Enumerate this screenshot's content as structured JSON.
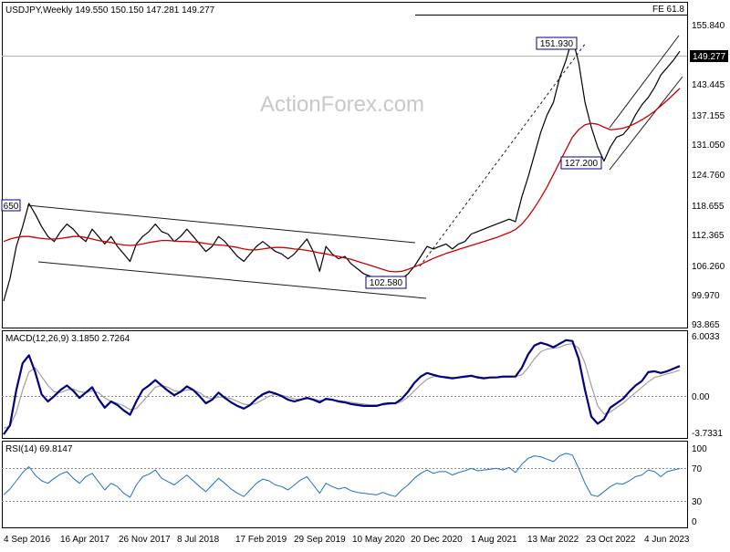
{
  "chart_data": [
    {
      "type": "line",
      "panel": "price",
      "title": "USDJPY,Weekly  149.550 150.150 147.281 149.277",
      "y_ticks": [
        "155.840",
        "149.277",
        "143.445",
        "137.155",
        "131.050",
        "124.760",
        "118.655",
        "112.365",
        "106.260",
        "99.970",
        "93.865"
      ],
      "ylim": [
        93.865,
        158.5
      ],
      "current_price_label": "149.277",
      "fib_label": "FE 61.8",
      "watermark": "ActionForex.com",
      "annotations": [
        {
          "text": "151.930",
          "x": "23 Oct 2022",
          "y": 151.93
        },
        {
          "text": "127.200",
          "x": "23 Oct 2022",
          "y": 127.2
        },
        {
          "text": "102.580",
          "x": "20 Dec 2020",
          "y": 102.58
        },
        {
          "text": "650",
          "x": "4 Sep 2016",
          "y": 118.65
        }
      ],
      "series": [
        {
          "values": [
            99.0,
            103.5,
            110.0,
            114.0,
            118.65,
            116.5,
            114.0,
            112.0,
            111.0,
            113.0,
            114.5,
            113.5,
            112.0,
            111.0,
            113.5,
            112.0,
            110.5,
            112.0,
            110.0,
            108.5,
            107.0,
            110.5,
            112.0,
            113.0,
            114.5,
            113.0,
            112.5,
            111.0,
            112.0,
            113.5,
            112.0,
            110.5,
            109.0,
            110.0,
            112.0,
            111.0,
            109.5,
            108.0,
            107.0,
            108.5,
            110.0,
            111.0,
            110.0,
            109.0,
            108.5,
            107.5,
            108.5,
            110.0,
            111.5,
            109.0,
            105.0,
            110.0,
            108.5,
            107.5,
            108.0,
            106.5,
            105.5,
            104.5,
            104.0,
            103.5,
            104.0,
            103.0,
            102.58,
            103.5,
            104.5,
            106.0,
            108.0,
            110.0,
            109.5,
            110.0,
            110.5,
            109.5,
            110.5,
            111.0,
            112.5,
            113.0,
            113.5,
            114.0,
            114.5,
            115.0,
            115.5,
            115.0,
            120.0,
            124.0,
            128.5,
            133.0,
            136.5,
            139.0,
            144.0,
            147.5,
            151.93,
            147.0,
            139.0,
            134.0,
            130.0,
            127.2,
            130.0,
            132.0,
            132.5,
            134.0,
            136.5,
            138.5,
            140.0,
            142.0,
            144.5,
            146.0,
            147.5,
            149.277
          ]
        },
        {
          "values": [
            111.0,
            111.5,
            111.8,
            112.0,
            112.0,
            111.8,
            111.6,
            111.5,
            111.5,
            111.6,
            111.8,
            112.0,
            112.0,
            111.8,
            111.5,
            111.2,
            111.0,
            110.8,
            110.5,
            110.3,
            110.2,
            110.3,
            110.5,
            110.8,
            111.0,
            111.2,
            111.2,
            111.1,
            111.0,
            111.0,
            110.9,
            110.8,
            110.6,
            110.4,
            110.3,
            110.2,
            110.0,
            109.8,
            109.5,
            109.3,
            109.3,
            109.5,
            109.7,
            109.8,
            109.8,
            109.7,
            109.5,
            109.4,
            109.2,
            109.0,
            108.7,
            108.5,
            108.2,
            108.0,
            107.7,
            107.4,
            107.0,
            106.6,
            106.2,
            105.8,
            105.4,
            105.0,
            104.9,
            105.0,
            105.4,
            105.9,
            106.4,
            107.0,
            107.6,
            108.1,
            108.6,
            109.0,
            109.4,
            109.8,
            110.2,
            110.6,
            111.0,
            111.4,
            111.8,
            112.3,
            112.8,
            113.4,
            114.5,
            116.0,
            117.8,
            119.8,
            122.0,
            124.5,
            127.0,
            129.5,
            132.0,
            133.5,
            134.5,
            134.8,
            134.6,
            134.0,
            133.5,
            133.6,
            133.8,
            134.2,
            134.8,
            135.5,
            136.3,
            137.2,
            138.3,
            139.4,
            140.6,
            141.8
          ]
        }
      ]
    },
    {
      "type": "line",
      "panel": "macd",
      "title": "MACD(12,26,9) 3.1850 2.7264",
      "y_ticks": [
        "6.0033",
        "0.00",
        "-3.7331"
      ],
      "ylim": [
        -4.8,
        6.9
      ],
      "series": [
        {
          "values": [
            -4.5,
            -3.5,
            0.5,
            3.5,
            4.4,
            2.5,
            0.0,
            -0.8,
            -0.2,
            0.5,
            1.0,
            0.4,
            -0.4,
            0.2,
            0.8,
            -0.5,
            -1.5,
            -0.8,
            -1.2,
            -1.8,
            -2.3,
            -0.8,
            0.5,
            1.0,
            1.6,
            1.0,
            0.4,
            -0.1,
            0.3,
            0.9,
            0.5,
            -0.2,
            -1.0,
            -0.6,
            0.2,
            -0.4,
            -0.9,
            -1.3,
            -1.6,
            -1.2,
            -0.5,
            0.0,
            0.3,
            0.1,
            -0.2,
            -0.6,
            -0.8,
            -0.6,
            -0.4,
            -0.6,
            -0.9,
            -0.5,
            -0.6,
            -0.8,
            -0.9,
            -1.1,
            -1.2,
            -1.3,
            -1.3,
            -1.3,
            -1.1,
            -1.0,
            -1.0,
            -0.5,
            0.3,
            1.3,
            2.0,
            2.4,
            2.2,
            2.0,
            1.9,
            1.8,
            1.9,
            2.0,
            2.1,
            1.9,
            1.8,
            1.9,
            1.9,
            2.0,
            2.0,
            2.0,
            3.0,
            4.5,
            5.5,
            5.8,
            5.6,
            5.3,
            5.7,
            6.1,
            6.0,
            4.0,
            0.5,
            -2.5,
            -3.3,
            -2.8,
            -1.5,
            -1.0,
            -0.5,
            0.3,
            1.0,
            1.5,
            2.5,
            2.6,
            2.4,
            2.6,
            2.9,
            3.185
          ]
        },
        {
          "values": [
            -3.8,
            -3.6,
            -2.0,
            0.5,
            2.5,
            3.0,
            2.0,
            1.0,
            0.3,
            0.2,
            0.5,
            0.6,
            0.3,
            0.2,
            0.4,
            0.2,
            -0.4,
            -0.8,
            -1.0,
            -1.3,
            -1.7,
            -1.6,
            -0.8,
            0.0,
            0.8,
            1.0,
            0.8,
            0.4,
            0.3,
            0.5,
            0.5,
            0.2,
            -0.3,
            -0.5,
            -0.3,
            -0.3,
            -0.5,
            -0.8,
            -1.1,
            -1.2,
            -1.0,
            -0.6,
            -0.2,
            0.0,
            -0.1,
            -0.3,
            -0.5,
            -0.6,
            -0.5,
            -0.5,
            -0.7,
            -0.6,
            -0.6,
            -0.7,
            -0.8,
            -0.9,
            -1.0,
            -1.1,
            -1.2,
            -1.2,
            -1.2,
            -1.1,
            -1.0,
            -0.8,
            -0.3,
            0.4,
            1.1,
            1.7,
            2.0,
            2.0,
            2.0,
            1.9,
            1.9,
            1.9,
            2.0,
            2.0,
            1.9,
            1.9,
            1.9,
            1.9,
            1.9,
            2.0,
            2.2,
            3.0,
            4.0,
            4.8,
            5.1,
            5.2,
            5.3,
            5.6,
            5.7,
            5.2,
            3.5,
            1.0,
            -1.3,
            -2.2,
            -2.0,
            -1.5,
            -1.0,
            -0.4,
            0.2,
            0.8,
            1.4,
            1.9,
            2.1,
            2.3,
            2.5,
            2.7264
          ]
        }
      ]
    },
    {
      "type": "line",
      "panel": "rsi",
      "title": "RSI(14) 69.8147",
      "y_ticks": [
        "100",
        "70",
        "30",
        "0"
      ],
      "ylim": [
        0,
        100
      ],
      "levels": [
        70,
        30
      ],
      "series": [
        {
          "values": [
            38,
            45,
            55,
            65,
            72,
            62,
            55,
            52,
            58,
            63,
            66,
            58,
            52,
            60,
            64,
            54,
            44,
            52,
            48,
            40,
            35,
            50,
            60,
            63,
            68,
            58,
            54,
            50,
            56,
            62,
            55,
            48,
            42,
            50,
            58,
            52,
            45,
            40,
            36,
            44,
            52,
            57,
            55,
            50,
            48,
            44,
            50,
            56,
            60,
            50,
            40,
            52,
            48,
            45,
            47,
            43,
            41,
            40,
            39,
            38,
            41,
            38,
            36,
            44,
            50,
            58,
            64,
            68,
            64,
            66,
            66,
            62,
            65,
            67,
            70,
            67,
            68,
            69,
            70,
            68,
            71,
            65,
            75,
            82,
            85,
            84,
            81,
            78,
            85,
            88,
            86,
            70,
            52,
            38,
            36,
            42,
            48,
            52,
            51,
            55,
            60,
            62,
            68,
            66,
            60,
            66,
            68,
            69.8147
          ]
        }
      ]
    }
  ],
  "x_ticks": [
    "4 Sep 2016",
    "16 Apr 2017",
    "26 Nov 2017",
    "8 Jul 2018",
    "17 Feb 2019",
    "29 Sep 2019",
    "10 May 2020",
    "20 Dec 2020",
    "1 Aug 2021",
    "13 Mar 2022",
    "23 Oct 2022",
    "4 Jun 2023"
  ],
  "colors": {
    "price": "#000000",
    "ma": "#cc0000",
    "macd": "#000080",
    "signal": "#a0a0a0",
    "rsi": "#1e6fd0",
    "axis": "#000000",
    "grid_dotted": "#8c8c8c"
  }
}
